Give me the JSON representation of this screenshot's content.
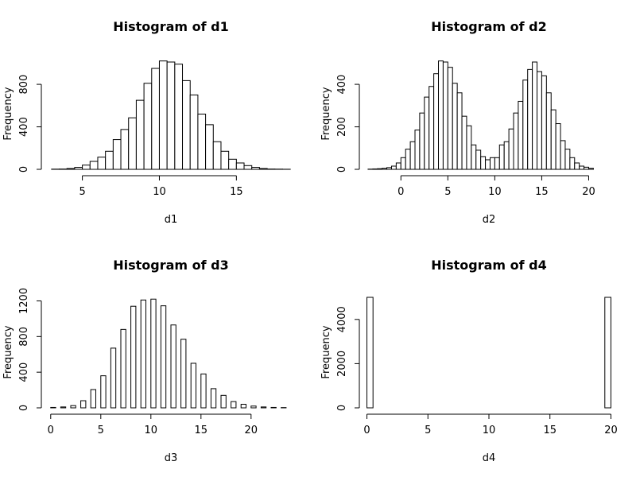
{
  "chart_data": [
    {
      "type": "bar",
      "title": "Histogram of d1",
      "xlabel": "d1",
      "ylabel": "Frequency",
      "xlim": [
        2.75,
        18.75
      ],
      "ylim": [
        0,
        1040
      ],
      "xticks": [
        5,
        10,
        15
      ],
      "yticks": [
        0,
        400,
        800
      ],
      "bin_width": 0.5,
      "bins_start": 3,
      "values": [
        2,
        3,
        8,
        18,
        40,
        75,
        115,
        170,
        280,
        375,
        485,
        650,
        810,
        950,
        1020,
        1010,
        990,
        835,
        700,
        520,
        420,
        260,
        170,
        95,
        60,
        35,
        18,
        8,
        3,
        2,
        1
      ]
    },
    {
      "type": "bar",
      "title": "Histogram of d2",
      "xlabel": "d2",
      "ylabel": "Frequency",
      "xlim": [
        -3.75,
        22.5
      ],
      "ylim": [
        0,
        520
      ],
      "xticks": [
        0,
        5,
        10,
        15,
        20
      ],
      "yticks": [
        0,
        200,
        400
      ],
      "bin_width": 0.5,
      "bins_start": -3.5,
      "values": [
        1,
        2,
        3,
        5,
        8,
        15,
        30,
        55,
        95,
        130,
        185,
        265,
        340,
        390,
        450,
        510,
        505,
        480,
        405,
        360,
        250,
        205,
        115,
        90,
        60,
        45,
        55,
        55,
        115,
        130,
        190,
        265,
        320,
        420,
        470,
        505,
        460,
        440,
        360,
        280,
        215,
        135,
        95,
        55,
        30,
        15,
        10,
        5
      ]
    },
    {
      "type": "bar",
      "title": "Histogram of d3",
      "xlabel": "d3",
      "ylabel": "Frequency",
      "xlim": [
        -0.3,
        24.3
      ],
      "ylim": [
        0,
        1240
      ],
      "xticks": [
        0,
        5,
        10,
        15,
        20
      ],
      "yticks": [
        0,
        400,
        800,
        1200
      ],
      "bin_width": 0.5,
      "bins_start": 0,
      "values": [
        5,
        0,
        10,
        0,
        25,
        0,
        80,
        0,
        205,
        0,
        360,
        0,
        670,
        0,
        880,
        0,
        1140,
        0,
        1210,
        0,
        1220,
        0,
        1145,
        0,
        930,
        0,
        770,
        0,
        500,
        0,
        380,
        0,
        215,
        0,
        140,
        0,
        70,
        0,
        40,
        0,
        20,
        0,
        10,
        0,
        5,
        0,
        3,
        0
      ]
    },
    {
      "type": "bar",
      "title": "Histogram of d4",
      "xlabel": "d4",
      "ylabel": "Frequency",
      "xlim": [
        -0.1,
        20.1
      ],
      "ylim": [
        0,
        5000
      ],
      "xticks": [
        0,
        5,
        10,
        15,
        20
      ],
      "yticks": [
        0,
        2000,
        4000
      ],
      "bin_width": 0.5,
      "bins_start": 0,
      "values": [
        5000,
        0,
        0,
        0,
        0,
        0,
        0,
        0,
        0,
        0,
        0,
        0,
        0,
        0,
        0,
        0,
        0,
        0,
        0,
        0,
        0,
        0,
        0,
        0,
        0,
        0,
        0,
        0,
        0,
        0,
        0,
        0,
        0,
        0,
        0,
        0,
        0,
        0,
        0,
        5000
      ]
    }
  ]
}
